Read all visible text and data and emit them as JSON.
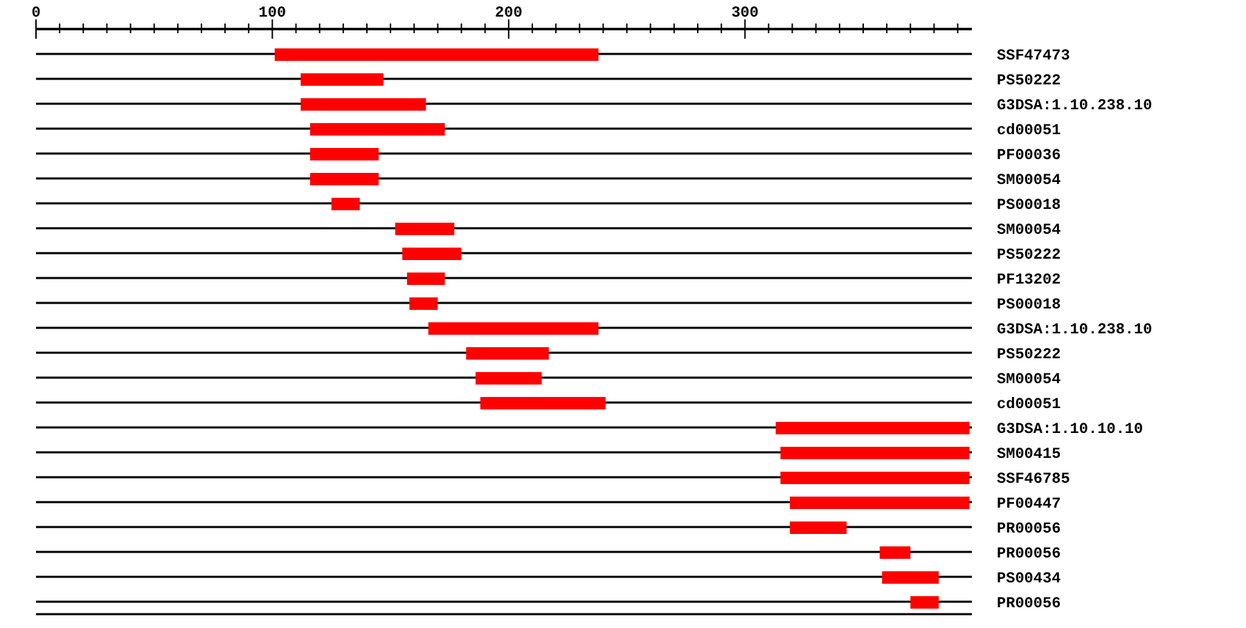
{
  "chart_data": {
    "type": "bar",
    "orientation": "horizontal",
    "categories": [
      "SSF47473",
      "PS50222",
      "G3DSA:1.10.238.10",
      "cd00051",
      "PF00036",
      "SM00054",
      "PS00018",
      "SM00054",
      "PS50222",
      "PF13202",
      "PS00018",
      "G3DSA:1.10.238.10",
      "PS50222",
      "SM00054",
      "cd00051",
      "G3DSA:1.10.10.10",
      "SM00415",
      "SSF46785",
      "PF00447",
      "PR00056",
      "PR00056",
      "PS00434",
      "PR00056"
    ],
    "base": [
      101,
      112,
      112,
      116,
      116,
      116,
      125,
      152,
      155,
      157,
      158,
      166,
      182,
      186,
      188,
      313,
      315,
      315,
      319,
      319,
      357,
      358,
      370
    ],
    "values": [
      137,
      35,
      53,
      57,
      29,
      29,
      12,
      25,
      25,
      16,
      12,
      72,
      35,
      28,
      53,
      82,
      80,
      80,
      76,
      24,
      13,
      24,
      12
    ],
    "color": "#ff0000",
    "xlim": [
      0,
      396
    ],
    "xticks": [
      0,
      {
        "value": 10,
        "label": null
      },
      {
        "value": 20,
        "label": null
      },
      {
        "value": 30,
        "label": null
      },
      {
        "value": 40,
        "label": null
      },
      {
        "value": 50,
        "label": null
      },
      {
        "value": 60,
        "label": null
      },
      {
        "value": 70,
        "label": null
      },
      {
        "value": 80,
        "label": null
      },
      {
        "value": 90,
        "label": null
      },
      100,
      {
        "value": 110,
        "label": null
      },
      {
        "value": 120,
        "label": null
      },
      {
        "value": 130,
        "label": null
      },
      {
        "value": 140,
        "label": null
      },
      {
        "value": 150,
        "label": null
      },
      {
        "value": 160,
        "label": null
      },
      {
        "value": 170,
        "label": null
      },
      {
        "value": 180,
        "label": null
      },
      {
        "value": 190,
        "label": null
      },
      200,
      {
        "value": 210,
        "label": null
      },
      {
        "value": 220,
        "label": null
      },
      {
        "value": 230,
        "label": null
      },
      {
        "value": 240,
        "label": null
      },
      {
        "value": 250,
        "label": null
      },
      {
        "value": 260,
        "label": null
      },
      {
        "value": 270,
        "label": null
      },
      {
        "value": 280,
        "label": null
      },
      {
        "value": 290,
        "label": null
      },
      300,
      {
        "value": 310,
        "label": null
      },
      {
        "value": 320,
        "label": null
      },
      {
        "value": 330,
        "label": null
      },
      {
        "value": 340,
        "label": null
      },
      {
        "value": 350,
        "label": null
      },
      {
        "value": 360,
        "label": null
      },
      {
        "value": 370,
        "label": null
      },
      {
        "value": 380,
        "label": null
      },
      {
        "value": 390,
        "label": null
      }
    ],
    "grid": "y"
  }
}
